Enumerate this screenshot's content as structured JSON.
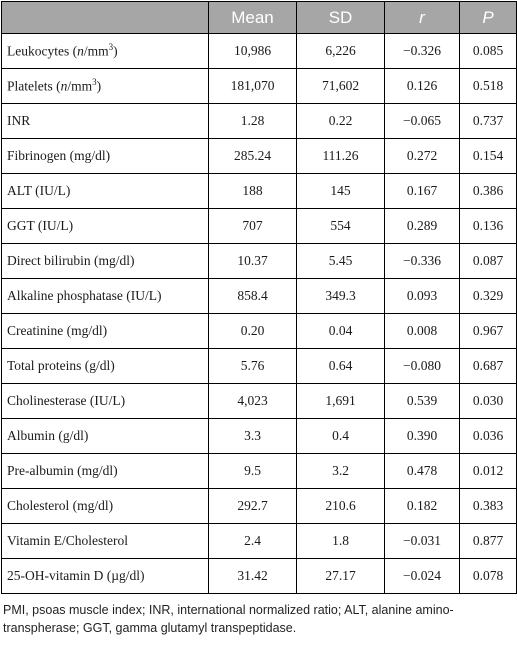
{
  "table": {
    "headers": [
      "",
      "Mean",
      "SD",
      "r",
      "P"
    ],
    "rows": [
      {
        "label_pre": "Leukocytes (",
        "label_unit": "n",
        "label_post": "/mm",
        "label_sup": "3",
        "label_end": ")",
        "mean": "10,986",
        "sd": "6,226",
        "r": "−0.326",
        "p": "0.085"
      },
      {
        "label_pre": "Platelets (",
        "label_unit": "n",
        "label_post": "/mm",
        "label_sup": "3",
        "label_end": ")",
        "mean": "181,070",
        "sd": "71,602",
        "r": "0.126",
        "p": "0.518"
      },
      {
        "label": "INR",
        "mean": "1.28",
        "sd": "0.22",
        "r": "−0.065",
        "p": "0.737"
      },
      {
        "label": "Fibrinogen (mg/dl)",
        "mean": "285.24",
        "sd": "111.26",
        "r": "0.272",
        "p": "0.154"
      },
      {
        "label": "ALT (IU/L)",
        "mean": "188",
        "sd": "145",
        "r": "0.167",
        "p": "0.386"
      },
      {
        "label": "GGT (IU/L)",
        "mean": "707",
        "sd": "554",
        "r": "0.289",
        "p": "0.136"
      },
      {
        "label": "Direct bilirubin (mg/dl)",
        "mean": "10.37",
        "sd": "5.45",
        "r": "−0.336",
        "p": "0.087"
      },
      {
        "label": "Alkaline phosphatase (IU/L)",
        "mean": "858.4",
        "sd": "349.3",
        "r": "0.093",
        "p": "0.329"
      },
      {
        "label": "Creatinine (mg/dl)",
        "mean": "0.20",
        "sd": "0.04",
        "r": "0.008",
        "p": "0.967"
      },
      {
        "label": "Total proteins (g/dl)",
        "mean": "5.76",
        "sd": "0.64",
        "r": "−0.080",
        "p": "0.687"
      },
      {
        "label": "Cholinesterase (IU/L)",
        "mean": "4,023",
        "sd": "1,691",
        "r": "0.539",
        "p": "0.030"
      },
      {
        "label": "Albumin (g/dl)",
        "mean": "3.3",
        "sd": "0.4",
        "r": "0.390",
        "p": "0.036"
      },
      {
        "label": "Pre-albumin (mg/dl)",
        "mean": "9.5",
        "sd": "3.2",
        "r": "0.478",
        "p": "0.012"
      },
      {
        "label": "Cholesterol (mg/dl)",
        "mean": "292.7",
        "sd": "210.6",
        "r": "0.182",
        "p": "0.383"
      },
      {
        "label": "Vitamin E/Cholesterol",
        "mean": "2.4",
        "sd": "1.8",
        "r": "−0.031",
        "p": "0.877"
      },
      {
        "label": "25-OH-vitamin D (µg/dl)",
        "mean": "31.42",
        "sd": "27.17",
        "r": "−0.024",
        "p": "0.078"
      }
    ]
  },
  "footnote": "PMI, psoas muscle index; INR, international normalized ratio; ALT, alanine amino-transpherase; GGT, gamma glutamyl transpeptidase."
}
